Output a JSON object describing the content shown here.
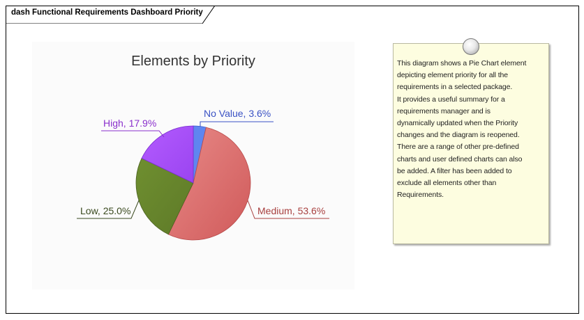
{
  "diagram": {
    "frame_title": "dash Functional Requirements Dashboard Priority"
  },
  "chart_data": {
    "type": "pie",
    "title": "Elements by Priority",
    "categories": [
      "No Value",
      "Medium",
      "Low",
      "High"
    ],
    "values": [
      3.6,
      53.6,
      25.0,
      17.9
    ],
    "colors": [
      "#5f86f0",
      "#d96666",
      "#6b8a2e",
      "#a24ff5"
    ],
    "labels": [
      "No Value, 3.6%",
      "Medium, 53.6%",
      "Low, 25.0%",
      "High, 17.9%"
    ],
    "label_colors": [
      "#3a52c4",
      "#a8403f",
      "#3a4a1f",
      "#8a2fcc"
    ],
    "legend": "none",
    "grid": false
  },
  "note": {
    "lines": [
      "This diagram shows a Pie Chart element",
      "depicting element priority for all the",
      "requirements in a selected package.",
      "It provides a useful summary for a",
      "requirements manager and is",
      "dynamically updated when the Priority",
      "changes and the diagram is reopened.",
      "There are a range of other pre-defined",
      "charts and user defined charts can also",
      "be added. A filter has been added to",
      "exclude all elements other than",
      "Requirements."
    ]
  }
}
